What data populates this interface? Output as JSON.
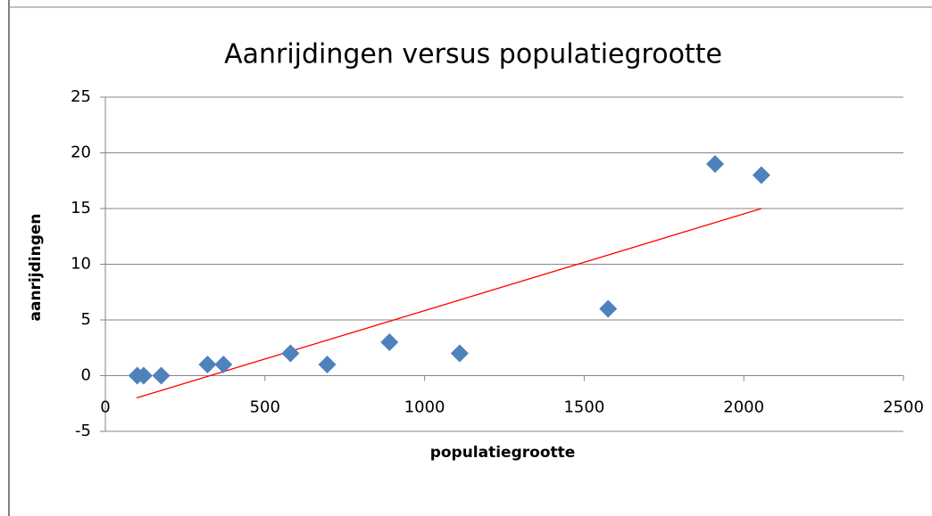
{
  "chart_data": {
    "type": "scatter",
    "title": "Aanrijdingen versus populatiegrootte",
    "x_label": "populatiegrootte",
    "y_label": "aanrijdingen",
    "x": [
      100,
      120,
      175,
      320,
      370,
      580,
      695,
      890,
      1110,
      1575,
      1910,
      2055
    ],
    "values": [
      0,
      0,
      0,
      1,
      1,
      2,
      1,
      3,
      2,
      6,
      19,
      18
    ],
    "color": "#4f81bd",
    "trendline": {
      "x": [
        98,
        2055
      ],
      "y": [
        -2,
        15
      ],
      "color": "#ff0000"
    },
    "xlim": [
      0,
      2500
    ],
    "xticks": [
      0,
      500,
      1000,
      1500,
      2000,
      2500
    ],
    "ylim": [
      -5,
      25
    ],
    "yticks": [
      -5,
      0,
      5,
      10,
      15,
      20,
      25
    ],
    "grid": true
  }
}
